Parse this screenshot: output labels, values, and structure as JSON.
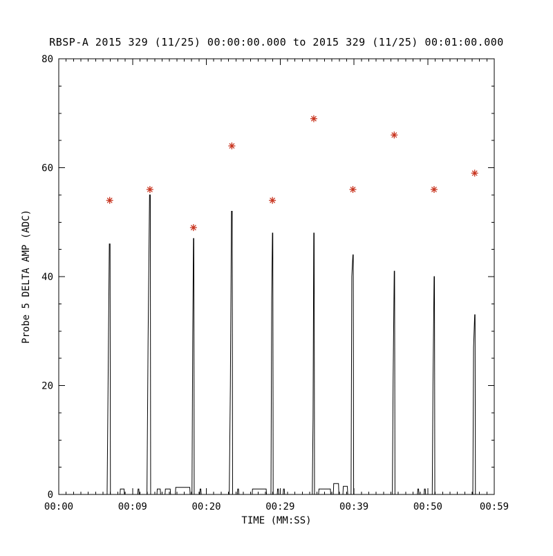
{
  "page": {
    "background": "#ffffff"
  },
  "chart_data": {
    "type": "line",
    "title": "RBSP-A 2015 329 (11/25) 00:00:00.000 to 2015 329 (11/25) 00:01:00.000",
    "xlabel": "TIME (MM:SS)",
    "ylabel": "Probe 5 DELTA AMP (ADC)",
    "xlim": [
      0,
      59
    ],
    "ylim": [
      0,
      80
    ],
    "grid": false,
    "legend": "none",
    "line_color": "#000000",
    "marker_color": "#c8341f",
    "marker_style": "asterisk",
    "x_major_ticks": [
      {
        "t": 0,
        "label": "00:00"
      },
      {
        "t": 10,
        "label": "00:09"
      },
      {
        "t": 20,
        "label": "00:20"
      },
      {
        "t": 30,
        "label": "00:29"
      },
      {
        "t": 40,
        "label": "00:39"
      },
      {
        "t": 50,
        "label": "00:50"
      },
      {
        "t": 59,
        "label": "00:59"
      }
    ],
    "y_major_ticks": [
      {
        "v": 0,
        "label": "0"
      },
      {
        "v": 20,
        "label": "20"
      },
      {
        "v": 40,
        "label": "40"
      },
      {
        "v": 60,
        "label": "60"
      },
      {
        "v": 80,
        "label": "80"
      }
    ],
    "x_minor_step": 1,
    "y_minor_step": 5,
    "line_points": [
      [
        0,
        0
      ],
      [
        6.55,
        0
      ],
      [
        6.7,
        23
      ],
      [
        6.85,
        46
      ],
      [
        6.95,
        46
      ],
      [
        7.0,
        0
      ],
      [
        8.3,
        0
      ],
      [
        8.35,
        1
      ],
      [
        8.85,
        1
      ],
      [
        8.9,
        0
      ],
      [
        10.7,
        0
      ],
      [
        10.75,
        1
      ],
      [
        10.85,
        1
      ],
      [
        10.9,
        0
      ],
      [
        11.95,
        0
      ],
      [
        12.1,
        28
      ],
      [
        12.3,
        55
      ],
      [
        12.4,
        55
      ],
      [
        12.45,
        0
      ],
      [
        13.3,
        0
      ],
      [
        13.35,
        1
      ],
      [
        13.75,
        1
      ],
      [
        13.8,
        0
      ],
      [
        14.4,
        0
      ],
      [
        14.45,
        1
      ],
      [
        15.1,
        1
      ],
      [
        15.15,
        0
      ],
      [
        15.8,
        0
      ],
      [
        15.85,
        1.3
      ],
      [
        17.75,
        1.3
      ],
      [
        17.8,
        0
      ],
      [
        18.05,
        0
      ],
      [
        18.15,
        29
      ],
      [
        18.25,
        47
      ],
      [
        18.3,
        47
      ],
      [
        18.35,
        0
      ],
      [
        19.1,
        0
      ],
      [
        19.15,
        1
      ],
      [
        19.25,
        1
      ],
      [
        19.3,
        0
      ],
      [
        23.1,
        0
      ],
      [
        23.25,
        20
      ],
      [
        23.4,
        52
      ],
      [
        23.5,
        52
      ],
      [
        23.55,
        0
      ],
      [
        24.2,
        0
      ],
      [
        24.25,
        1
      ],
      [
        24.35,
        1
      ],
      [
        24.4,
        0
      ],
      [
        26.2,
        0
      ],
      [
        26.25,
        1
      ],
      [
        28.1,
        1
      ],
      [
        28.15,
        0
      ],
      [
        28.75,
        0
      ],
      [
        28.85,
        36
      ],
      [
        28.95,
        48
      ],
      [
        29.0,
        48
      ],
      [
        29.05,
        0
      ],
      [
        29.6,
        0
      ],
      [
        29.65,
        1
      ],
      [
        29.75,
        1
      ],
      [
        29.8,
        0
      ],
      [
        30.4,
        0
      ],
      [
        30.45,
        1
      ],
      [
        30.55,
        1
      ],
      [
        30.6,
        0
      ],
      [
        34.35,
        0
      ],
      [
        34.45,
        14
      ],
      [
        34.55,
        48
      ],
      [
        34.6,
        48
      ],
      [
        34.65,
        0
      ],
      [
        35.2,
        0
      ],
      [
        35.25,
        1
      ],
      [
        36.8,
        1
      ],
      [
        36.85,
        0
      ],
      [
        37.2,
        0
      ],
      [
        37.25,
        2
      ],
      [
        37.9,
        2
      ],
      [
        37.95,
        0
      ],
      [
        38.5,
        0
      ],
      [
        38.55,
        1.5
      ],
      [
        39.1,
        1.5
      ],
      [
        39.15,
        0
      ],
      [
        39.6,
        0
      ],
      [
        39.7,
        40
      ],
      [
        39.85,
        44
      ],
      [
        39.9,
        44
      ],
      [
        39.95,
        0
      ],
      [
        45.2,
        0
      ],
      [
        45.3,
        21
      ],
      [
        45.45,
        41
      ],
      [
        45.5,
        41
      ],
      [
        45.55,
        0
      ],
      [
        48.6,
        0
      ],
      [
        48.65,
        1
      ],
      [
        48.75,
        1
      ],
      [
        48.8,
        0
      ],
      [
        49.5,
        0
      ],
      [
        49.55,
        1
      ],
      [
        49.65,
        1
      ],
      [
        49.7,
        0
      ],
      [
        50.6,
        0
      ],
      [
        50.7,
        20
      ],
      [
        50.85,
        40
      ],
      [
        50.9,
        40
      ],
      [
        50.95,
        0
      ],
      [
        56.1,
        0
      ],
      [
        56.2,
        27
      ],
      [
        56.35,
        33
      ],
      [
        56.4,
        33
      ],
      [
        56.45,
        0
      ],
      [
        59,
        0
      ]
    ],
    "markers": [
      [
        6.9,
        54
      ],
      [
        12.35,
        56
      ],
      [
        18.25,
        49
      ],
      [
        23.45,
        64
      ],
      [
        28.95,
        54
      ],
      [
        34.55,
        69
      ],
      [
        39.85,
        56
      ],
      [
        45.45,
        66
      ],
      [
        50.85,
        56
      ],
      [
        56.35,
        59
      ]
    ]
  }
}
